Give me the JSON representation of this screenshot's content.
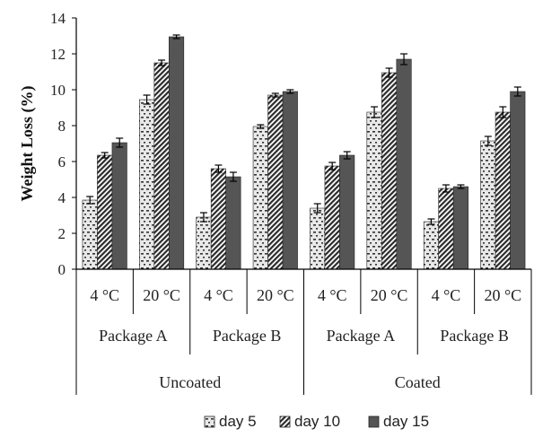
{
  "chart_data": {
    "type": "bar",
    "ylabel": "Weight Loss (%)",
    "ylim": [
      0,
      14
    ],
    "yticks": [
      0,
      2,
      4,
      6,
      8,
      10,
      12,
      14
    ],
    "grid": false,
    "legend_position": "bottom",
    "categories": [
      {
        "coating": "Uncoated",
        "package": "Package A",
        "temperature": "4 °C"
      },
      {
        "coating": "Uncoated",
        "package": "Package A",
        "temperature": "20 °C"
      },
      {
        "coating": "Uncoated",
        "package": "Package B",
        "temperature": "4 °C"
      },
      {
        "coating": "Uncoated",
        "package": "Package B",
        "temperature": "20 °C"
      },
      {
        "coating": "Coated",
        "package": "Package A",
        "temperature": "4 °C"
      },
      {
        "coating": "Coated",
        "package": "Package A",
        "temperature": "20 °C"
      },
      {
        "coating": "Coated",
        "package": "Package B",
        "temperature": "4 °C"
      },
      {
        "coating": "Coated",
        "package": "Package B",
        "temperature": "20 °C"
      }
    ],
    "series": [
      {
        "name": "day 5",
        "pattern": "dotted",
        "values": [
          3.85,
          9.45,
          2.9,
          7.95,
          3.4,
          8.75,
          2.65,
          7.15
        ],
        "errors": [
          0.2,
          0.25,
          0.25,
          0.1,
          0.25,
          0.3,
          0.15,
          0.25
        ]
      },
      {
        "name": "day 10",
        "pattern": "hatched",
        "values": [
          6.35,
          11.5,
          5.6,
          9.7,
          5.75,
          10.95,
          4.5,
          8.75
        ],
        "errors": [
          0.15,
          0.15,
          0.2,
          0.1,
          0.2,
          0.25,
          0.2,
          0.3
        ]
      },
      {
        "name": "day 15",
        "pattern": "solid",
        "values": [
          7.05,
          12.95,
          5.15,
          9.9,
          6.35,
          11.7,
          4.6,
          9.9
        ],
        "errors": [
          0.25,
          0.1,
          0.25,
          0.1,
          0.2,
          0.3,
          0.1,
          0.25
        ]
      }
    ],
    "colors": {
      "day15": "#555555",
      "day10": "#2b2b2b",
      "day5_bg": "#e8e8e8",
      "day5_dot": "#333333",
      "axis": "#000000"
    }
  }
}
